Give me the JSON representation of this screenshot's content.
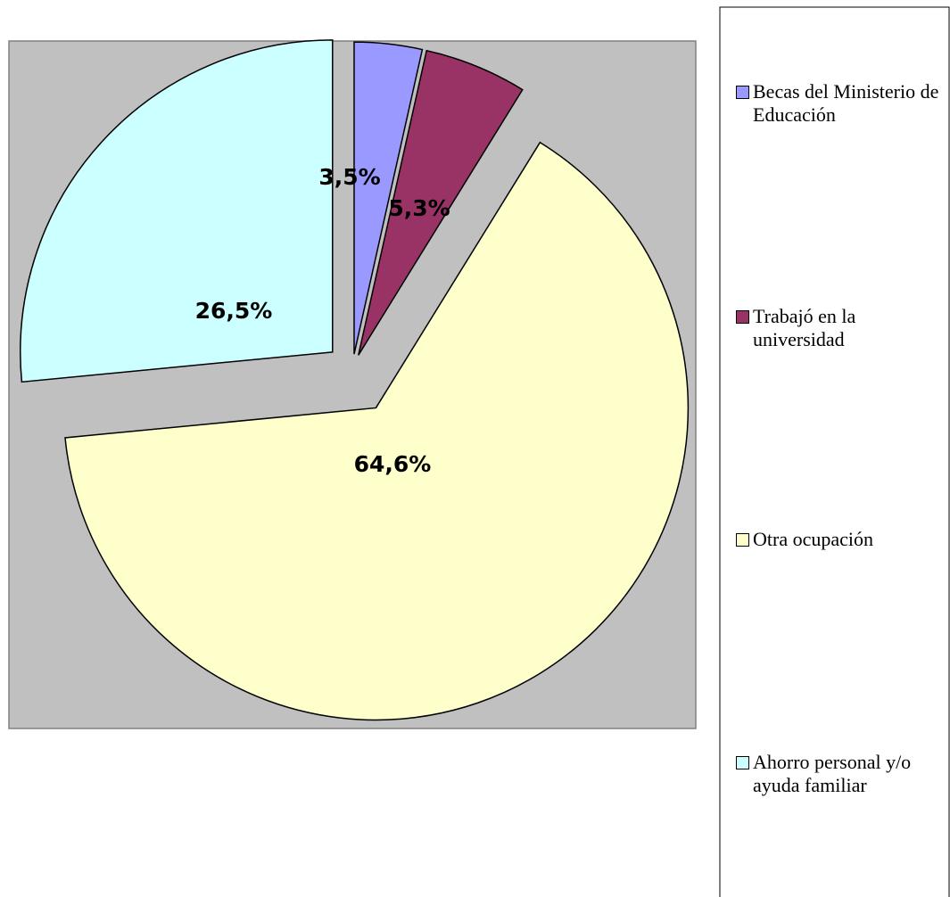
{
  "chart_data": {
    "type": "pie",
    "categories": [
      "Becas del Ministerio de Educación",
      "Trabajó en la universidad",
      "Otra ocupación",
      "Ahorro personal y/o ayuda familiar"
    ],
    "values": [
      3.5,
      5.3,
      64.6,
      26.5
    ],
    "value_labels": [
      "3,5%",
      "5,3%",
      "64,6%",
      "26,5%"
    ],
    "colors": [
      "#9999ff",
      "#993366",
      "#ffffcc",
      "#ccffff"
    ],
    "legend": "right"
  }
}
